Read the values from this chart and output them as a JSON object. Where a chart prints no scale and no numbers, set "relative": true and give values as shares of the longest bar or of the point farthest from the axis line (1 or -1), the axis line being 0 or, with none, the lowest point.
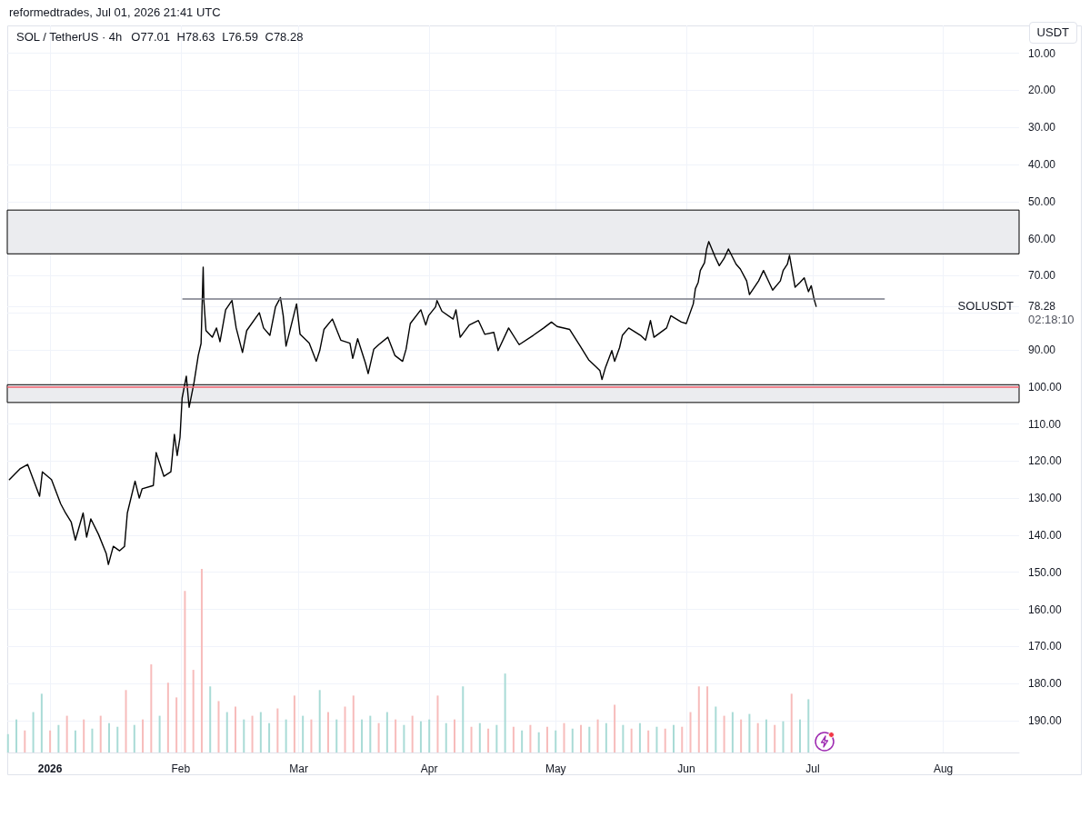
{
  "chart_data": [
    {
      "type": "line",
      "title": "SOL / TetherUS · 4h",
      "subtitle": "O77.01 H78.63 L76.59 C78.28",
      "annotations": [
        "reformedtrades, Jul 01, 2026 21:41 UTC",
        "USDT",
        "SOLUSDT",
        "02:18:10"
      ],
      "x": [
        "2025-12-22T08:00",
        "2025-12-24T20:00",
        "2025-12-26T16:00",
        "2025-12-29T12:00",
        "2025-12-30T04:00",
        "2026-01-01T08:00",
        "2026-01-03T12:00",
        "2026-01-04T16:00",
        "2026-01-06T00:00",
        "2026-01-07T00:00",
        "2026-01-08T20:00",
        "2026-01-09T16:00",
        "2026-01-10T16:00",
        "2026-01-12T12:00",
        "2026-01-14T08:00",
        "2026-01-14T20:00",
        "2026-01-16T00:00",
        "2026-01-17T12:00",
        "2026-01-18T16:00",
        "2026-01-19T08:00",
        "2026-01-21T04:00",
        "2026-01-22T04:00",
        "2026-01-22T20:00",
        "2026-01-25T12:00",
        "2026-01-26T04:00",
        "2026-01-28T00:00",
        "2026-01-29T16:00",
        "2026-01-30T12:00",
        "2026-01-31T04:00",
        "2026-01-31T20:00",
        "2026-02-01T08:00",
        "2026-02-02T08:00",
        "2026-02-03T00:00",
        "2026-02-04T04:00",
        "2026-02-05T04:00",
        "2026-02-05T20:00",
        "2026-02-06T08:00",
        "2026-02-06T12:00",
        "2026-02-07T00:00",
        "2026-02-08T12:00",
        "2026-02-09T12:00",
        "2026-02-10T08:00",
        "2026-02-11T16:00",
        "2026-02-13T04:00",
        "2026-02-14T04:00",
        "2026-02-15T16:00",
        "2026-02-16T16:00",
        "2026-02-19T16:00",
        "2026-02-20T16:00",
        "2026-02-22T04:00",
        "2026-02-23T12:00",
        "2026-02-24T16:00",
        "2026-02-25T08:00",
        "2026-02-26T00:00",
        "2026-02-28T12:00",
        "2026-03-01T08:00",
        "2026-03-03T12:00",
        "2026-03-05T04:00",
        "2026-03-06T00:00",
        "2026-03-07T00:00",
        "2026-03-09T00:00",
        "2026-03-11T00:00",
        "2026-03-13T04:00",
        "2026-03-13T20:00",
        "2026-03-15T00:00",
        "2026-03-16T20:00",
        "2026-03-17T12:00",
        "2026-03-18T20:00",
        "2026-03-20T00:00",
        "2026-03-22T04:00",
        "2026-03-23T20:00",
        "2026-03-25T16:00",
        "2026-03-26T12:00",
        "2026-03-27T12:00",
        "2026-03-30T00:00",
        "2026-03-31T04:00",
        "2026-03-31T20:00",
        "2026-04-02T12:00",
        "2026-04-02T20:00",
        "2026-04-04T00:00",
        "2026-04-06T16:00",
        "2026-04-07T08:00",
        "2026-04-08T08:00",
        "2026-04-10T12:00",
        "2026-04-12T16:00",
        "2026-04-14T04:00",
        "2026-04-16T08:00",
        "2026-04-17T08:00",
        "2026-04-19T20:00",
        "2026-04-22T08:00",
        "2026-04-25T16:00",
        "2026-04-28T04:00",
        "2026-04-30T00:00",
        "2026-05-01T08:00",
        "2026-05-04T08:00",
        "2026-05-06T20:00",
        "2026-05-08T20:00",
        "2026-05-10T08:00",
        "2026-05-11T12:00",
        "2026-05-12T00:00",
        "2026-05-12T20:00",
        "2026-05-14T08:00",
        "2026-05-15T00:00",
        "2026-05-16T04:00",
        "2026-05-16T20:00",
        "2026-05-18T08:00",
        "2026-05-21T04:00",
        "2026-05-22T08:00",
        "2026-05-23T12:00",
        "2026-05-24T08:00",
        "2026-05-27T08:00",
        "2026-05-28T08:00",
        "2026-05-30T20:00",
        "2026-06-01T00:00",
        "2026-06-02T16:00",
        "2026-06-03T04:00",
        "2026-06-03T20:00",
        "2026-06-04T08:00",
        "2026-06-05T08:00",
        "2026-06-05T20:00",
        "2026-06-06T08:00",
        "2026-06-07T20:00",
        "2026-06-08T20:00",
        "2026-06-10T00:00",
        "2026-06-11T00:00",
        "2026-06-12T20:00",
        "2026-06-13T20:00",
        "2026-06-15T08:00",
        "2026-06-16T00:00",
        "2026-06-18T04:00",
        "2026-06-19T08:00",
        "2026-06-20T08:00",
        "2026-06-21T12:00",
        "2026-06-23T08:00",
        "2026-06-24T00:00",
        "2026-06-25T00:00",
        "2026-06-25T12:00",
        "2026-06-26T20:00",
        "2026-06-28T00:00",
        "2026-06-29T00:00",
        "2026-06-30T00:00",
        "2026-06-30T16:00",
        "2026-07-01T08:00",
        "2026-07-01T20:00"
      ],
      "series": [
        {
          "color": "#000000",
          "values": [
            125.0,
            122.1,
            120.9,
            129.5,
            122.9,
            125.0,
            131.5,
            134.0,
            136.4,
            141.3,
            134.0,
            140.5,
            135.6,
            139.8,
            145.0,
            147.9,
            143.0,
            144.2,
            143.0,
            134.0,
            125.4,
            130.0,
            127.5,
            126.6,
            117.7,
            124.1,
            122.9,
            112.8,
            118.5,
            113.6,
            103.0,
            97.1,
            105.5,
            98.8,
            91.5,
            88.3,
            67.7,
            76.7,
            84.8,
            86.6,
            84.1,
            87.8,
            79.2,
            76.7,
            84.1,
            90.7,
            84.8,
            80.0,
            84.1,
            86.1,
            78.4,
            75.9,
            80.8,
            89.0,
            77.6,
            85.8,
            88.2,
            93.1,
            90.2,
            84.5,
            81.7,
            87.4,
            88.2,
            92.3,
            87.0,
            93.5,
            96.4,
            89.8,
            88.6,
            86.6,
            91.5,
            93.1,
            89.8,
            82.9,
            79.2,
            83.3,
            80.8,
            78.4,
            76.7,
            79.6,
            81.7,
            79.2,
            86.6,
            83.3,
            82.1,
            85.8,
            85.3,
            90.2,
            84.1,
            88.6,
            86.1,
            84.1,
            82.5,
            83.7,
            84.5,
            89.0,
            92.7,
            94.3,
            95.6,
            98.0,
            94.7,
            90.2,
            93.1,
            89.4,
            86.1,
            84.1,
            86.1,
            87.4,
            82.1,
            86.6,
            84.1,
            80.8,
            82.5,
            82.9,
            77.6,
            73.5,
            71.8,
            68.6,
            66.5,
            62.8,
            60.8,
            64.9,
            67.3,
            65.3,
            62.8,
            66.9,
            68.2,
            71.4,
            75.1,
            71.4,
            68.6,
            71.0,
            73.9,
            71.4,
            68.6,
            66.9,
            64.5,
            73.1,
            71.8,
            70.6,
            74.3,
            72.7,
            76.3,
            78.28
          ]
        },
        {
          "color": "#787b86",
          "x": [
            "2026-02-01T12:00",
            "2026-07-18T00:00"
          ],
          "values": [
            76.3,
            76.3
          ]
        }
      ],
      "xlim": [
        "2025-12-21T20:00",
        "2026-08-19T00:00"
      ],
      "xticks": [
        {
          "value": "2026-01-01",
          "label": "2026"
        },
        {
          "value": "2026-02-01",
          "label": "Feb"
        },
        {
          "value": "2026-03-01",
          "label": "Mar"
        },
        {
          "value": "2026-04-01",
          "label": "Apr"
        },
        {
          "value": "2026-05-01",
          "label": "May"
        },
        {
          "value": "2026-06-01",
          "label": "Jun"
        },
        {
          "value": "2026-07-01",
          "label": "Jul"
        },
        {
          "value": "2026-08-01",
          "label": "Aug"
        }
      ],
      "ylim": [
        198.6,
        2.5
      ],
      "yticks": [
        {
          "value": 10,
          "label": "10.00"
        },
        {
          "value": 20,
          "label": "20.00"
        },
        {
          "value": 30,
          "label": "30.00"
        },
        {
          "value": 40,
          "label": "40.00"
        },
        {
          "value": 50,
          "label": "50.00"
        },
        {
          "value": 60,
          "label": "60.00"
        },
        {
          "value": 70,
          "label": "70.00"
        },
        {
          "value": 78.28,
          "label": "78.28"
        },
        {
          "value": 80,
          "label": null
        },
        {
          "value": 90,
          "label": "90.00"
        },
        {
          "value": 100,
          "label": "100.00"
        },
        {
          "value": 110,
          "label": "110.00"
        },
        {
          "value": 120,
          "label": "120.00"
        },
        {
          "value": 130,
          "label": "130.00"
        },
        {
          "value": 140,
          "label": "140.00"
        },
        {
          "value": 150,
          "label": "150.00"
        },
        {
          "value": 160,
          "label": "160.00"
        },
        {
          "value": 170,
          "label": "170.00"
        },
        {
          "value": 180,
          "label": "180.00"
        },
        {
          "value": 190,
          "label": "190.00"
        }
      ],
      "grid": true,
      "marker": "none",
      "ref_lines": [
        {
          "axis": "y",
          "value": 100,
          "color": "#f25f6c"
        }
      ],
      "bands": [
        {
          "axis": "y",
          "from": 52.3,
          "to": 64.1,
          "color": "#ebecef"
        },
        {
          "axis": "y",
          "from": 99.4,
          "to": 104.2,
          "color": "#ebecef"
        }
      ]
    },
    {
      "type": "bar",
      "relative": true,
      "xlim": [
        "2025-12-21T20:00",
        "2026-08-19T00:00"
      ],
      "x": [
        "2025-12-22",
        "2025-12-24",
        "2025-12-26",
        "2025-12-28",
        "2025-12-30",
        "2026-01-01",
        "2026-01-03",
        "2026-01-05",
        "2026-01-07",
        "2026-01-09",
        "2026-01-11",
        "2026-01-13",
        "2026-01-15",
        "2026-01-17",
        "2026-01-19",
        "2026-01-21",
        "2026-01-23",
        "2026-01-25",
        "2026-01-27",
        "2026-01-29",
        "2026-01-31",
        "2026-02-02",
        "2026-02-04",
        "2026-02-06",
        "2026-02-08",
        "2026-02-10",
        "2026-02-12",
        "2026-02-14",
        "2026-02-16",
        "2026-02-18",
        "2026-02-20",
        "2026-02-22",
        "2026-02-24",
        "2026-02-26",
        "2026-02-28",
        "2026-03-02",
        "2026-03-04",
        "2026-03-06",
        "2026-03-08",
        "2026-03-10",
        "2026-03-12",
        "2026-03-14",
        "2026-03-16",
        "2026-03-18",
        "2026-03-20",
        "2026-03-22",
        "2026-03-24",
        "2026-03-26",
        "2026-03-28",
        "2026-03-30",
        "2026-04-01",
        "2026-04-03",
        "2026-04-05",
        "2026-04-07",
        "2026-04-09",
        "2026-04-11",
        "2026-04-13",
        "2026-04-15",
        "2026-04-17",
        "2026-04-19",
        "2026-04-21",
        "2026-04-23",
        "2026-04-25",
        "2026-04-27",
        "2026-04-29",
        "2026-05-01",
        "2026-05-03",
        "2026-05-05",
        "2026-05-07",
        "2026-05-09",
        "2026-05-11",
        "2026-05-13",
        "2026-05-15",
        "2026-05-17",
        "2026-05-19",
        "2026-05-21",
        "2026-05-23",
        "2026-05-25",
        "2026-05-27",
        "2026-05-29",
        "2026-05-31",
        "2026-06-02",
        "2026-06-04",
        "2026-06-06",
        "2026-06-08",
        "2026-06-10",
        "2026-06-12",
        "2026-06-14",
        "2026-06-16",
        "2026-06-18",
        "2026-06-20",
        "2026-06-22",
        "2026-06-24",
        "2026-06-26",
        "2026-06-28",
        "2026-06-30"
      ],
      "values": [
        0.1,
        0.18,
        0.12,
        0.22,
        0.32,
        0.12,
        0.15,
        0.2,
        0.12,
        0.18,
        0.13,
        0.2,
        0.16,
        0.14,
        0.34,
        0.15,
        0.18,
        0.48,
        0.2,
        0.38,
        0.3,
        0.88,
        0.45,
        1.0,
        0.36,
        0.28,
        0.22,
        0.25,
        0.18,
        0.2,
        0.22,
        0.16,
        0.24,
        0.18,
        0.31,
        0.2,
        0.18,
        0.34,
        0.22,
        0.18,
        0.25,
        0.31,
        0.18,
        0.2,
        0.16,
        0.22,
        0.18,
        0.15,
        0.2,
        0.17,
        0.18,
        0.31,
        0.16,
        0.18,
        0.36,
        0.14,
        0.16,
        0.13,
        0.15,
        0.43,
        0.14,
        0.12,
        0.15,
        0.11,
        0.14,
        0.12,
        0.16,
        0.13,
        0.15,
        0.14,
        0.18,
        0.16,
        0.26,
        0.15,
        0.13,
        0.16,
        0.12,
        0.14,
        0.13,
        0.15,
        0.14,
        0.22,
        0.36,
        0.36,
        0.25,
        0.2,
        0.22,
        0.18,
        0.21,
        0.16,
        0.18,
        0.15,
        0.17,
        0.32,
        0.18,
        0.29
      ],
      "colors": [
        "#a9dbd6",
        "#a9dbd6",
        "#f7bcbb",
        "#a9dbd6",
        "#a9dbd6",
        "#f7bcbb",
        "#a9dbd6",
        "#f7bcbb",
        "#a9dbd6",
        "#f7bcbb",
        "#a9dbd6",
        "#f7bcbb",
        "#a9dbd6",
        "#a9dbd6",
        "#f7bcbb",
        "#a9dbd6",
        "#f7bcbb",
        "#f7bcbb",
        "#a9dbd6",
        "#f7bcbb",
        "#f7bcbb",
        "#f7bcbb",
        "#f7bcbb",
        "#f7bcbb",
        "#a9dbd6",
        "#f7bcbb",
        "#a9dbd6",
        "#f7bcbb",
        "#a9dbd6",
        "#f7bcbb",
        "#a9dbd6",
        "#a9dbd6",
        "#f7bcbb",
        "#a9dbd6",
        "#f7bcbb",
        "#a9dbd6",
        "#f7bcbb",
        "#a9dbd6",
        "#f7bcbb",
        "#a9dbd6",
        "#f7bcbb",
        "#f7bcbb",
        "#a9dbd6",
        "#a9dbd6",
        "#f7bcbb",
        "#a9dbd6",
        "#f7bcbb",
        "#a9dbd6",
        "#f7bcbb",
        "#a9dbd6",
        "#a9dbd6",
        "#f7bcbb",
        "#a9dbd6",
        "#f7bcbb",
        "#a9dbd6",
        "#f7bcbb",
        "#a9dbd6",
        "#f7bcbb",
        "#a9dbd6",
        "#a9dbd6",
        "#f7bcbb",
        "#a9dbd6",
        "#f7bcbb",
        "#a9dbd6",
        "#f7bcbb",
        "#a9dbd6",
        "#f7bcbb",
        "#a9dbd6",
        "#f7bcbb",
        "#a9dbd6",
        "#f7bcbb",
        "#a9dbd6",
        "#f7bcbb",
        "#a9dbd6",
        "#f7bcbb",
        "#a9dbd6",
        "#f7bcbb",
        "#a9dbd6",
        "#f7bcbb",
        "#a9dbd6",
        "#f7bcbb",
        "#f7bcbb",
        "#f7bcbb",
        "#f7bcbb",
        "#a9dbd6",
        "#f7bcbb",
        "#a9dbd6",
        "#f7bcbb",
        "#a9dbd6",
        "#f7bcbb",
        "#a9dbd6",
        "#f7bcbb",
        "#a9dbd6",
        "#f7bcbb",
        "#a9dbd6",
        "#a9dbd6"
      ]
    }
  ]
}
